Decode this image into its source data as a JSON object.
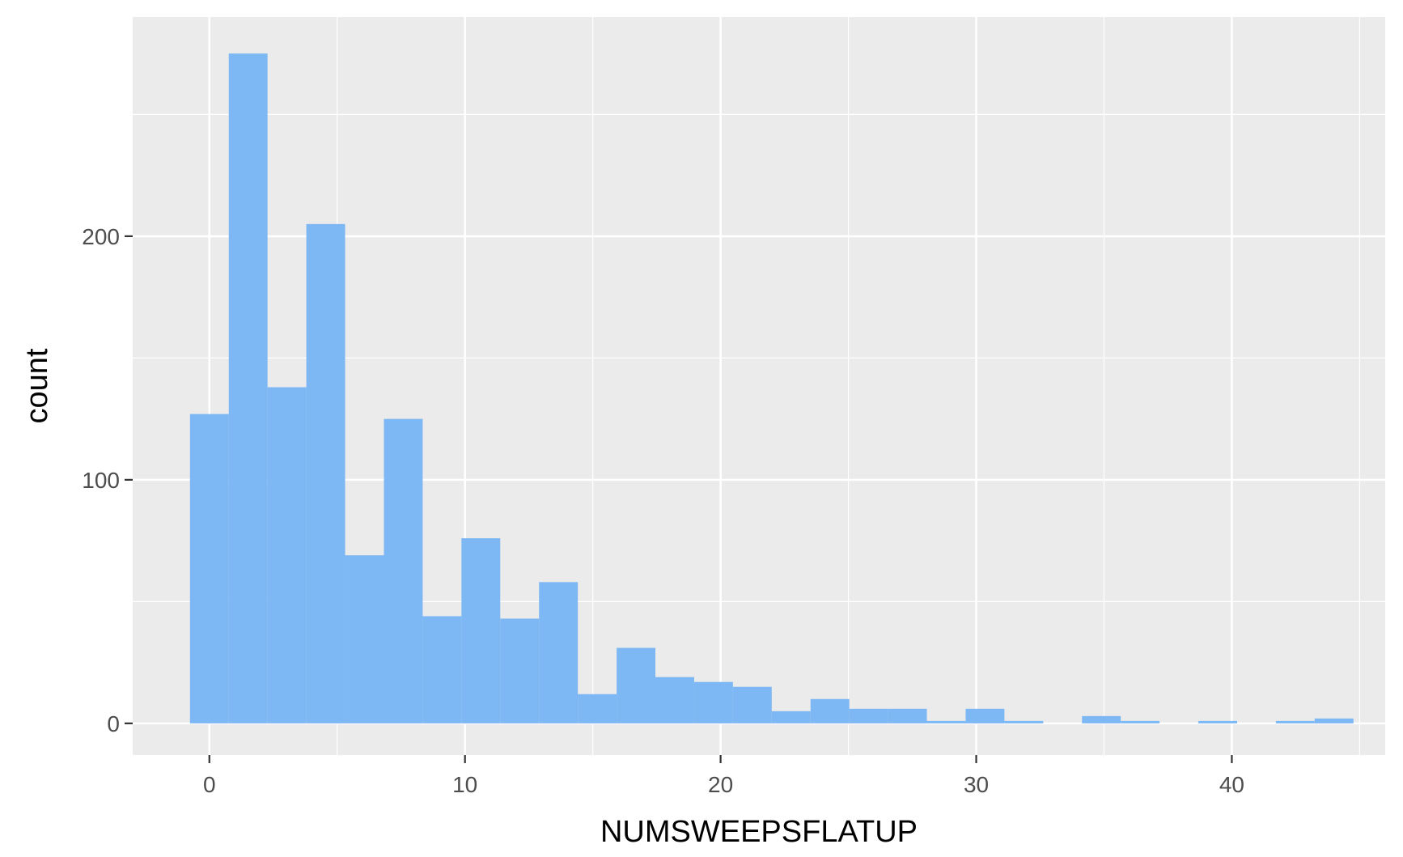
{
  "chart_data": {
    "type": "bar",
    "subtype": "histogram",
    "title": "",
    "xlabel": "NUMSWEEPSFLATUP",
    "ylabel": "count",
    "bin_width": 1.5172,
    "bins": [
      {
        "x0": -0.759,
        "x1": 0.759,
        "count": 127
      },
      {
        "x0": 0.759,
        "x1": 2.276,
        "count": 275
      },
      {
        "x0": 2.276,
        "x1": 3.793,
        "count": 138
      },
      {
        "x0": 3.793,
        "x1": 5.31,
        "count": 205
      },
      {
        "x0": 5.31,
        "x1": 6.828,
        "count": 69
      },
      {
        "x0": 6.828,
        "x1": 8.345,
        "count": 125
      },
      {
        "x0": 8.345,
        "x1": 9.862,
        "count": 44
      },
      {
        "x0": 9.862,
        "x1": 11.379,
        "count": 76
      },
      {
        "x0": 11.379,
        "x1": 12.897,
        "count": 43
      },
      {
        "x0": 12.897,
        "x1": 14.414,
        "count": 58
      },
      {
        "x0": 14.414,
        "x1": 15.931,
        "count": 12
      },
      {
        "x0": 15.931,
        "x1": 17.448,
        "count": 31
      },
      {
        "x0": 17.448,
        "x1": 18.966,
        "count": 19
      },
      {
        "x0": 18.966,
        "x1": 20.483,
        "count": 17
      },
      {
        "x0": 20.483,
        "x1": 22.0,
        "count": 15
      },
      {
        "x0": 22.0,
        "x1": 23.517,
        "count": 5
      },
      {
        "x0": 23.517,
        "x1": 25.034,
        "count": 10
      },
      {
        "x0": 25.034,
        "x1": 26.552,
        "count": 6
      },
      {
        "x0": 26.552,
        "x1": 28.069,
        "count": 6
      },
      {
        "x0": 28.069,
        "x1": 29.586,
        "count": 1
      },
      {
        "x0": 29.586,
        "x1": 31.103,
        "count": 6
      },
      {
        "x0": 31.103,
        "x1": 32.621,
        "count": 1
      },
      {
        "x0": 32.621,
        "x1": 34.138,
        "count": 0
      },
      {
        "x0": 34.138,
        "x1": 35.655,
        "count": 3
      },
      {
        "x0": 35.655,
        "x1": 37.172,
        "count": 1
      },
      {
        "x0": 37.172,
        "x1": 38.69,
        "count": 0
      },
      {
        "x0": 38.69,
        "x1": 40.207,
        "count": 1
      },
      {
        "x0": 40.207,
        "x1": 41.724,
        "count": 0
      },
      {
        "x0": 41.724,
        "x1": 43.241,
        "count": 1
      },
      {
        "x0": 43.241,
        "x1": 44.759,
        "count": 2
      }
    ],
    "xlim": [
      -3.0,
      46.0
    ],
    "ylim": [
      -13.0,
      290.0
    ],
    "x_ticks": [
      0,
      10,
      20,
      30,
      40
    ],
    "x_tick_labels": [
      "0",
      "10",
      "20",
      "30",
      "40"
    ],
    "x_minor_ticks": [
      5,
      15,
      25,
      35,
      45
    ],
    "y_ticks": [
      0,
      100,
      200
    ],
    "y_tick_labels": [
      "0",
      "100",
      "200"
    ],
    "y_minor_ticks": [
      50,
      150,
      250
    ],
    "grid": true,
    "legend": "none",
    "colors": {
      "bar": "#7db8f4",
      "panel": "#ebebeb",
      "grid": "#ffffff",
      "tick": "#333333",
      "tick_text": "#4d4d4d",
      "title_text": "#000000"
    }
  }
}
